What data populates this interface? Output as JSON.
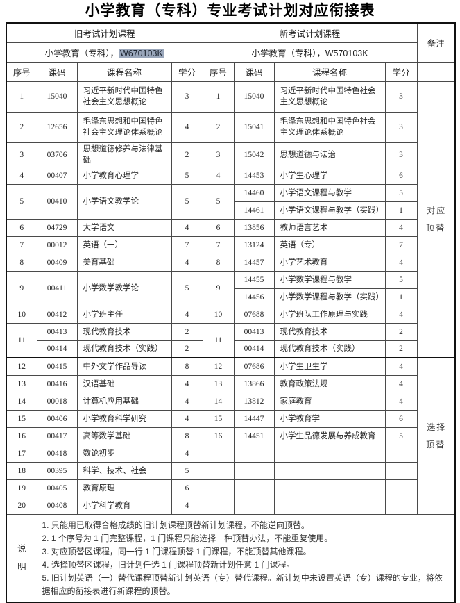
{
  "title": "小学教育（专科）专业考试计划对应衔接表",
  "colors": {
    "selection_highlight": "#9aa7bb",
    "border": "#4a4a4a",
    "text": "#262626"
  },
  "table": {
    "old_header": "旧考试计划课程",
    "new_header": "新考试计划课程",
    "remark_header": "备注",
    "old_subtitle_prefix": "小学教育（专科），",
    "old_subtitle_code": "W670103K",
    "new_subtitle": "小学教育（专科），W570103K",
    "columns": [
      "序号",
      "课码",
      "课程名称",
      "学分",
      "序号",
      "课码",
      "课程名称",
      "学分"
    ],
    "rows": [
      {
        "cells": [
          {
            "t": "1"
          },
          {
            "t": "15040"
          },
          {
            "t": "习近平新时代中国特色社会主义思想概论",
            "cls": "name"
          },
          {
            "t": "3"
          },
          {
            "t": "1"
          },
          {
            "t": "15040"
          },
          {
            "t": "习近平新时代中国特色社会主义思想概论",
            "cls": "name"
          },
          {
            "t": "3"
          },
          {
            "t": "对应\n顶替",
            "rs": 14,
            "cls": "remark",
            "n": "remark-correspond-cell"
          }
        ]
      },
      {
        "cells": [
          {
            "t": "2"
          },
          {
            "t": "12656"
          },
          {
            "t": "毛泽东思想和中国特色社会主义理论体系概论",
            "cls": "name"
          },
          {
            "t": "4"
          },
          {
            "t": "2"
          },
          {
            "t": "15041"
          },
          {
            "t": "毛泽东思想和中国特色社会主义理论体系概论",
            "cls": "name"
          },
          {
            "t": "3"
          }
        ]
      },
      {
        "cells": [
          {
            "t": "3"
          },
          {
            "t": "03706"
          },
          {
            "t": "思想道德修养与法律基础",
            "cls": "name"
          },
          {
            "t": "2"
          },
          {
            "t": "3"
          },
          {
            "t": "15042"
          },
          {
            "t": "思想道德与法治",
            "cls": "name"
          },
          {
            "t": "3"
          }
        ]
      },
      {
        "cells": [
          {
            "t": "4"
          },
          {
            "t": "00407"
          },
          {
            "t": "小学教育心理学",
            "cls": "name"
          },
          {
            "t": "5"
          },
          {
            "t": "4"
          },
          {
            "t": "14453"
          },
          {
            "t": "小学生心理学",
            "cls": "name"
          },
          {
            "t": "6"
          }
        ]
      },
      {
        "cells": [
          {
            "t": "5",
            "rs": 2
          },
          {
            "t": "00410",
            "rs": 2
          },
          {
            "t": "小学语文教学论",
            "cls": "name",
            "rs": 2
          },
          {
            "t": "5",
            "rs": 2
          },
          {
            "t": "5",
            "rs": 2
          },
          {
            "t": "14460"
          },
          {
            "t": "小学语文课程与教学",
            "cls": "name"
          },
          {
            "t": "5"
          }
        ]
      },
      {
        "cells": [
          {
            "t": "14461"
          },
          {
            "t": "小学语文课程与教学（实践）",
            "cls": "name"
          },
          {
            "t": "1"
          }
        ]
      },
      {
        "cells": [
          {
            "t": "6"
          },
          {
            "t": "04729"
          },
          {
            "t": "大学语文",
            "cls": "name"
          },
          {
            "t": "4"
          },
          {
            "t": "6"
          },
          {
            "t": "13856"
          },
          {
            "t": "教师语言艺术",
            "cls": "name"
          },
          {
            "t": "4"
          }
        ]
      },
      {
        "cells": [
          {
            "t": "7"
          },
          {
            "t": "00012"
          },
          {
            "t": "英语（一）",
            "cls": "name"
          },
          {
            "t": "7"
          },
          {
            "t": "7"
          },
          {
            "t": "13124"
          },
          {
            "t": "英语（专）",
            "cls": "name"
          },
          {
            "t": "7"
          }
        ]
      },
      {
        "cells": [
          {
            "t": "8"
          },
          {
            "t": "00409"
          },
          {
            "t": "美育基础",
            "cls": "name"
          },
          {
            "t": "4"
          },
          {
            "t": "8"
          },
          {
            "t": "14457"
          },
          {
            "t": "小学艺术教育",
            "cls": "name"
          },
          {
            "t": "4"
          }
        ]
      },
      {
        "cells": [
          {
            "t": "9",
            "rs": 2
          },
          {
            "t": "00411",
            "rs": 2
          },
          {
            "t": "小学数学教学论",
            "cls": "name",
            "rs": 2
          },
          {
            "t": "5",
            "rs": 2
          },
          {
            "t": "9",
            "rs": 2
          },
          {
            "t": "14455"
          },
          {
            "t": "小学数学课程与教学",
            "cls": "name"
          },
          {
            "t": "5"
          }
        ]
      },
      {
        "cells": [
          {
            "t": "14456"
          },
          {
            "t": "小学数学课程与教学（实践）",
            "cls": "name"
          },
          {
            "t": "1"
          }
        ]
      },
      {
        "cells": [
          {
            "t": "10"
          },
          {
            "t": "00412"
          },
          {
            "t": "小学班主任",
            "cls": "name"
          },
          {
            "t": "4"
          },
          {
            "t": "10"
          },
          {
            "t": "07688"
          },
          {
            "t": "小学班队工作原理与实践",
            "cls": "name"
          },
          {
            "t": "4"
          }
        ]
      },
      {
        "cells": [
          {
            "t": "11",
            "rs": 2
          },
          {
            "t": "00413"
          },
          {
            "t": "现代教育技术",
            "cls": "name"
          },
          {
            "t": "2"
          },
          {
            "t": "11",
            "rs": 2
          },
          {
            "t": "00413"
          },
          {
            "t": "现代教育技术",
            "cls": "name"
          },
          {
            "t": "2"
          }
        ]
      },
      {
        "cells": [
          {
            "t": "00414"
          },
          {
            "t": "现代教育技术（实践）",
            "cls": "name"
          },
          {
            "t": "2"
          },
          {
            "t": "00414"
          },
          {
            "t": "现代教育技术（实践）",
            "cls": "name"
          },
          {
            "t": "2"
          }
        ]
      },
      {
        "cells": [
          {
            "t": "12"
          },
          {
            "t": "00415"
          },
          {
            "t": "中外文学作品导读",
            "cls": "name"
          },
          {
            "t": "8"
          },
          {
            "t": "12"
          },
          {
            "t": "07686"
          },
          {
            "t": "小学生卫生学",
            "cls": "name"
          },
          {
            "t": "4"
          },
          {
            "t": "选择\n顶替",
            "rs": 9,
            "cls": "remark",
            "n": "remark-select-cell"
          }
        ]
      },
      {
        "cells": [
          {
            "t": "13"
          },
          {
            "t": "00416"
          },
          {
            "t": "汉语基础",
            "cls": "name"
          },
          {
            "t": "4"
          },
          {
            "t": "13"
          },
          {
            "t": "13866"
          },
          {
            "t": "教育政策法规",
            "cls": "name"
          },
          {
            "t": "4"
          }
        ]
      },
      {
        "cells": [
          {
            "t": "14"
          },
          {
            "t": "00018"
          },
          {
            "t": "计算机应用基础",
            "cls": "name"
          },
          {
            "t": "4"
          },
          {
            "t": "14"
          },
          {
            "t": "13812"
          },
          {
            "t": "家庭教育",
            "cls": "name"
          },
          {
            "t": "4"
          }
        ]
      },
      {
        "cells": [
          {
            "t": "15"
          },
          {
            "t": "00406"
          },
          {
            "t": "小学教育科学研究",
            "cls": "name"
          },
          {
            "t": "4"
          },
          {
            "t": "15"
          },
          {
            "t": "14447"
          },
          {
            "t": "小学教育学",
            "cls": "name"
          },
          {
            "t": "6"
          }
        ]
      },
      {
        "cells": [
          {
            "t": "16"
          },
          {
            "t": "00417"
          },
          {
            "t": "高等数学基础",
            "cls": "name"
          },
          {
            "t": "8"
          },
          {
            "t": "16"
          },
          {
            "t": "14451"
          },
          {
            "t": "小学生品德发展与养成教育",
            "cls": "name"
          },
          {
            "t": "5"
          }
        ]
      },
      {
        "cells": [
          {
            "t": "17"
          },
          {
            "t": "00418"
          },
          {
            "t": "数论初步",
            "cls": "name"
          },
          {
            "t": "4"
          },
          {
            "t": ""
          },
          {
            "t": ""
          },
          {
            "t": "",
            "cls": "name"
          },
          {
            "t": ""
          }
        ]
      },
      {
        "cells": [
          {
            "t": "18"
          },
          {
            "t": "00395"
          },
          {
            "t": "科学、技术、社会",
            "cls": "name"
          },
          {
            "t": "5"
          },
          {
            "t": ""
          },
          {
            "t": ""
          },
          {
            "t": "",
            "cls": "name"
          },
          {
            "t": ""
          }
        ]
      },
      {
        "cells": [
          {
            "t": "19"
          },
          {
            "t": "00405"
          },
          {
            "t": "教育原理",
            "cls": "name"
          },
          {
            "t": "6"
          },
          {
            "t": ""
          },
          {
            "t": ""
          },
          {
            "t": "",
            "cls": "name"
          },
          {
            "t": ""
          }
        ]
      },
      {
        "cells": [
          {
            "t": "20"
          },
          {
            "t": "00408"
          },
          {
            "t": "小学科学教育",
            "cls": "name"
          },
          {
            "t": "4"
          },
          {
            "t": ""
          },
          {
            "t": ""
          },
          {
            "t": "",
            "cls": "name"
          },
          {
            "t": ""
          }
        ]
      }
    ]
  },
  "notes": {
    "label": "说\n明",
    "items": [
      "1. 只能用已取得合格成绩的旧计划课程顶替新计划课程，不能逆向顶替。",
      "2. 1 个序号为 1 门完整课程，1 门课程只能选择一种顶替办法，不能重复使用。",
      "3. 对应顶替区课程，同一行 1 门课程顶替 1 门课程，不能顶替其他课程。",
      "4. 选择顶替区课程，旧计划任选 1 门课程顶替新计划任意 1 门课程。",
      "5. 旧计划英语（一）替代课程顶替新计划英语（专）替代课程。新计划中未设置英语（专）课程的专业，将依据相应的衔接表进行新课程的顶替。"
    ]
  }
}
